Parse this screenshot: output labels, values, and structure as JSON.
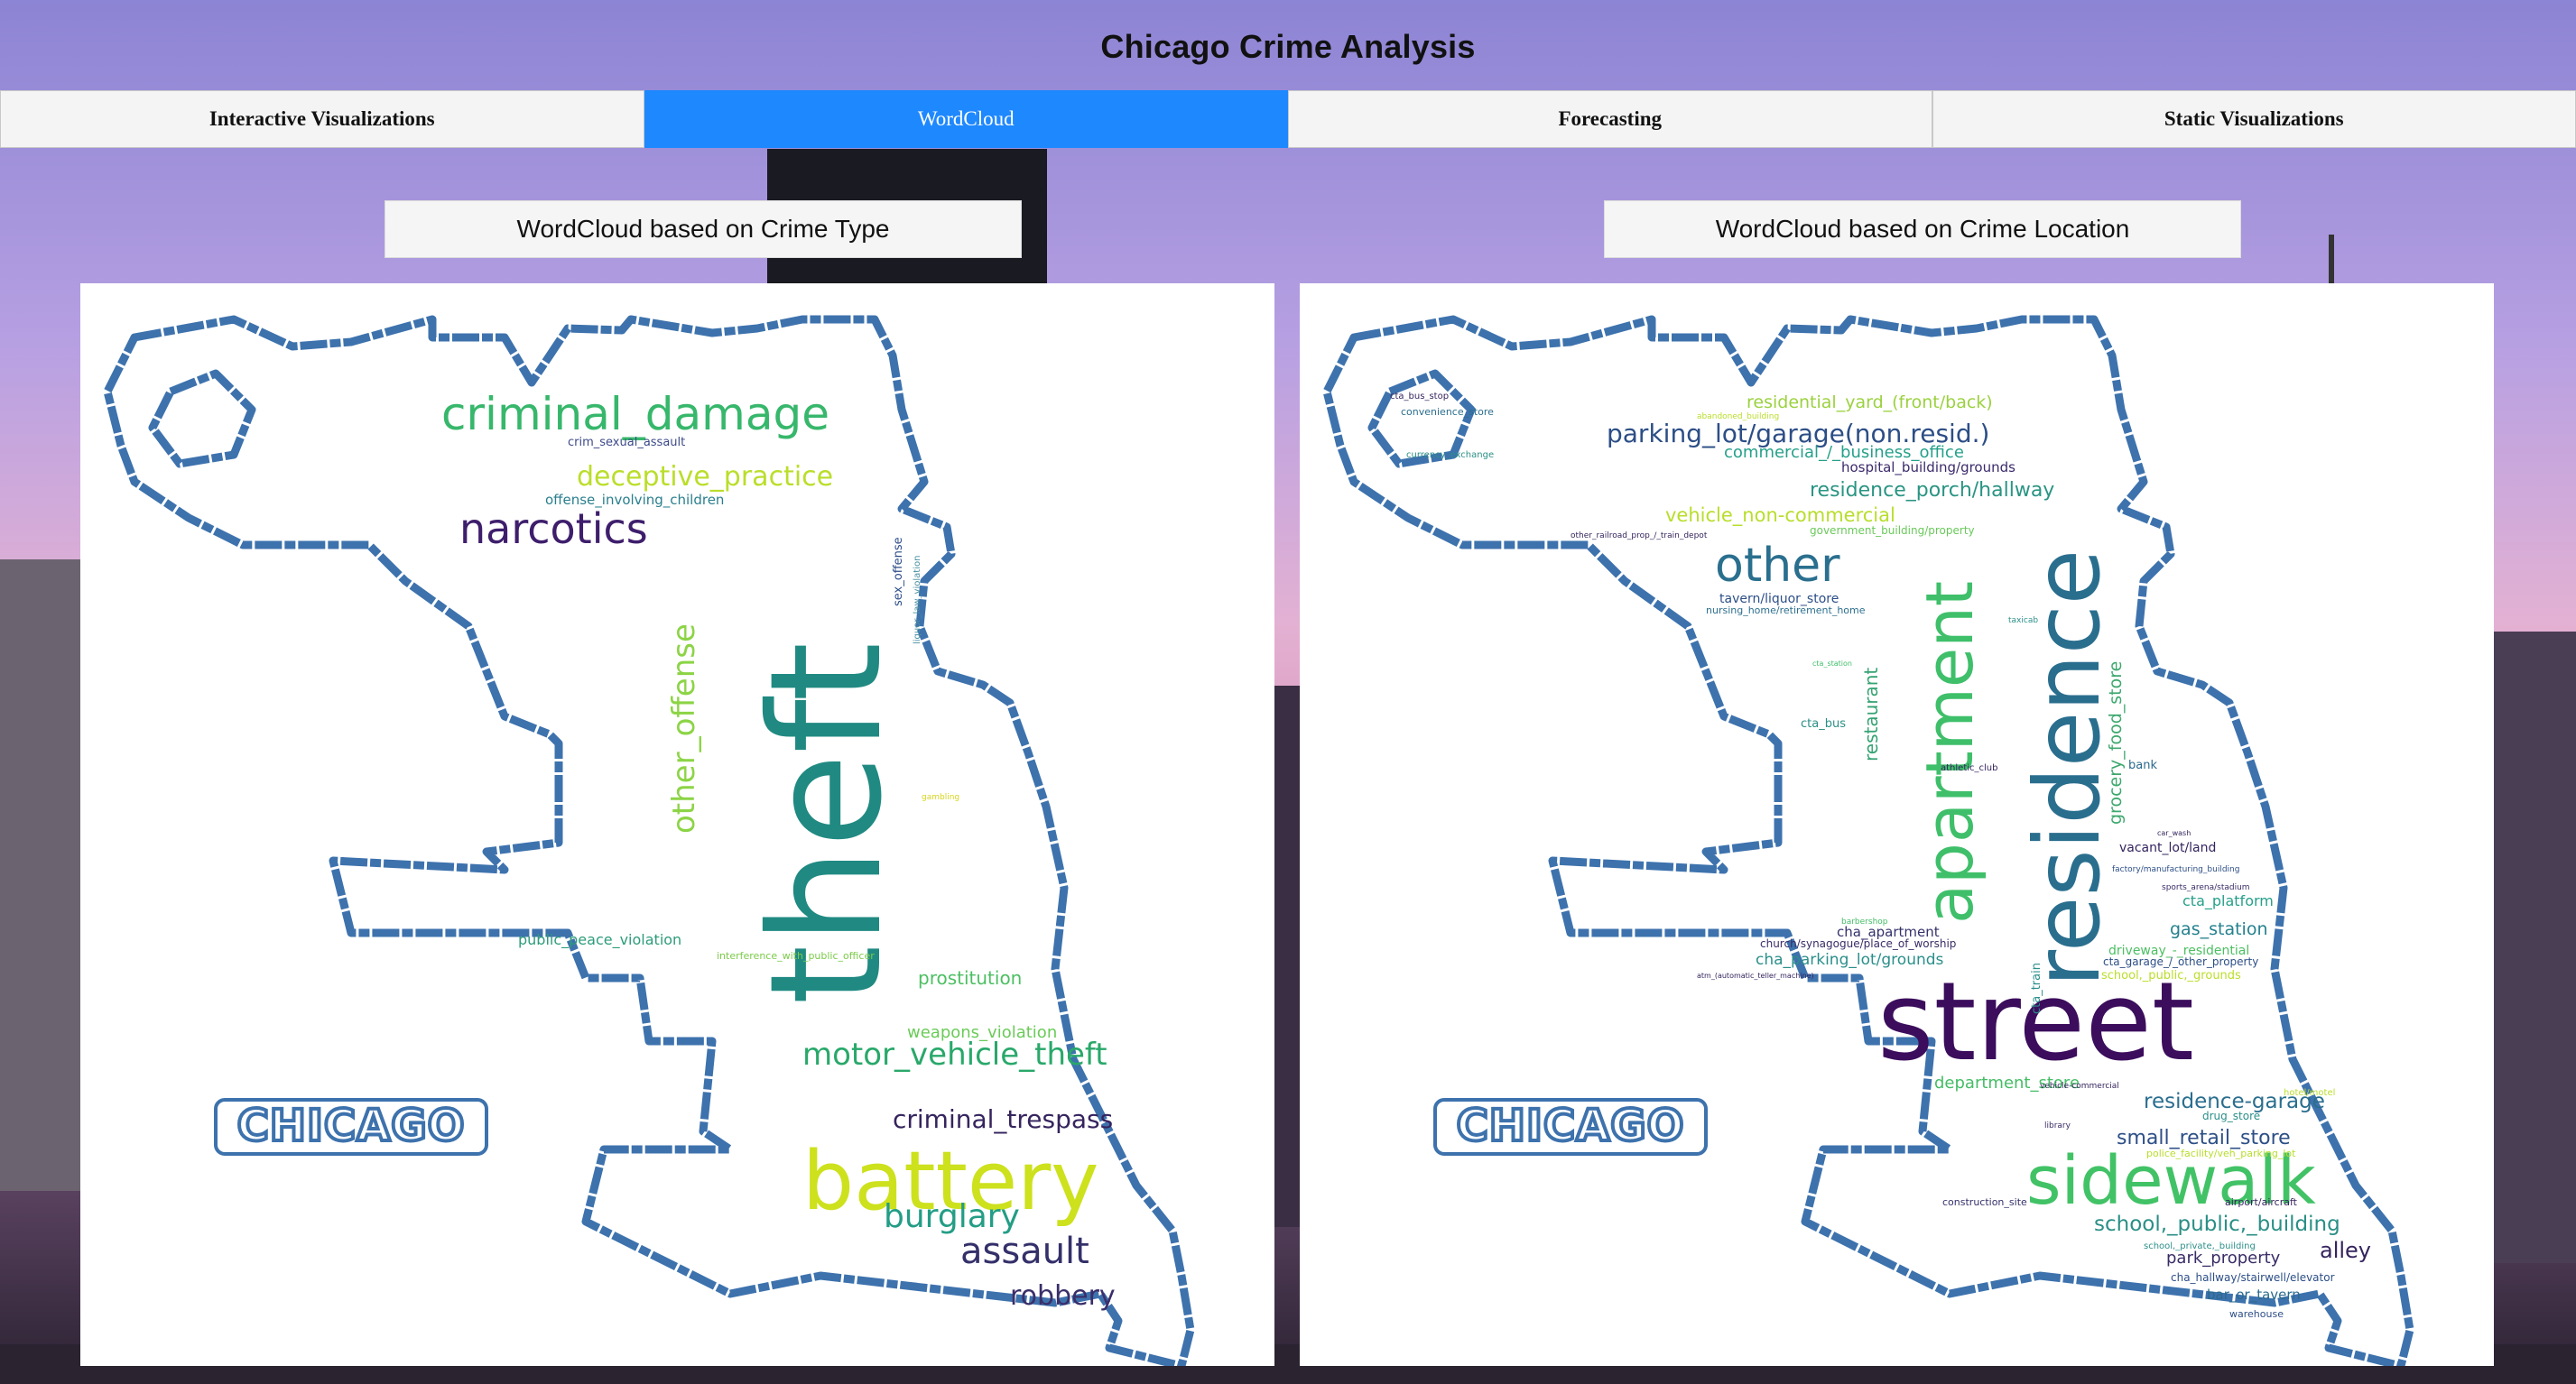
{
  "app": {
    "title": "Chicago Crime Analysis"
  },
  "tabs": [
    {
      "label": "Interactive Visualizations",
      "active": false
    },
    {
      "label": "WordCloud",
      "active": true
    },
    {
      "label": "Forecasting",
      "active": false
    },
    {
      "label": "Static Visualizations",
      "active": false
    }
  ],
  "colors": {
    "accent": "#1e88ff",
    "map_outline": "#3d72ad"
  },
  "panels": [
    {
      "label": "WordCloud based on Crime Type",
      "logo_text": "CHICAGO",
      "words": [
        {
          "text": "theft"
        },
        {
          "text": "battery"
        },
        {
          "text": "criminal_damage"
        },
        {
          "text": "narcotics"
        },
        {
          "text": "deceptive_practice"
        },
        {
          "text": "other_offense"
        },
        {
          "text": "motor_vehicle_theft"
        },
        {
          "text": "criminal_trespass"
        },
        {
          "text": "burglary"
        },
        {
          "text": "assault"
        },
        {
          "text": "robbery"
        },
        {
          "text": "prostitution"
        },
        {
          "text": "weapons_violation"
        },
        {
          "text": "public_peace_violation"
        },
        {
          "text": "interference_with_public_officer"
        },
        {
          "text": "offense_involving_children"
        },
        {
          "text": "crim_sexual_assault"
        },
        {
          "text": "sex_offense"
        },
        {
          "text": "liquor_law_violation"
        },
        {
          "text": "gambling"
        }
      ]
    },
    {
      "label": "WordCloud based on Crime Location",
      "logo_text": "CHICAGO",
      "words": [
        {
          "text": "street"
        },
        {
          "text": "residence"
        },
        {
          "text": "apartment"
        },
        {
          "text": "sidewalk"
        },
        {
          "text": "other"
        },
        {
          "text": "parking_lot/garage(non.resid.)"
        },
        {
          "text": "residential_yard_(front/back)"
        },
        {
          "text": "commercial_/_business_office"
        },
        {
          "text": "hospital_building/grounds"
        },
        {
          "text": "residence_porch/hallway"
        },
        {
          "text": "vehicle_non-commercial"
        },
        {
          "text": "government_building/property"
        },
        {
          "text": "tavern/liquor_store"
        },
        {
          "text": "nursing_home/retirement_home"
        },
        {
          "text": "restaurant"
        },
        {
          "text": "grocery_food_store"
        },
        {
          "text": "bank"
        },
        {
          "text": "vacant_lot/land"
        },
        {
          "text": "cta_platform"
        },
        {
          "text": "gas_station"
        },
        {
          "text": "cha_apartment"
        },
        {
          "text": "church/synagogue/place_of_worship"
        },
        {
          "text": "cha_parking_lot/grounds"
        },
        {
          "text": "driveway_-_residential"
        },
        {
          "text": "cta_garage_/_other_property"
        },
        {
          "text": "school,_public,_grounds"
        },
        {
          "text": "department_store"
        },
        {
          "text": "residence-garage"
        },
        {
          "text": "drug_store"
        },
        {
          "text": "small_retail_store"
        },
        {
          "text": "police_facility/veh_parking_lot"
        },
        {
          "text": "school,_public,_building"
        },
        {
          "text": "alley"
        },
        {
          "text": "park_property"
        },
        {
          "text": "cha_hallway/stairwell/elevator"
        },
        {
          "text": "bar_or_tavern"
        },
        {
          "text": "warehouse"
        },
        {
          "text": "construction_site"
        },
        {
          "text": "airport/aircraft"
        },
        {
          "text": "school,_private,_building"
        },
        {
          "text": "hotel/motel"
        },
        {
          "text": "cta_bus_stop"
        },
        {
          "text": "convenience_store"
        },
        {
          "text": "currency_exchange"
        },
        {
          "text": "other_railroad_prop_/_train_depot"
        },
        {
          "text": "cta_bus"
        },
        {
          "text": "cta_train"
        },
        {
          "text": "athletic_club"
        },
        {
          "text": "factory/manufacturing_building"
        },
        {
          "text": "sports_arena/stadium"
        },
        {
          "text": "atm_(automatic_teller_machine)"
        },
        {
          "text": "vehicle-commercial"
        },
        {
          "text": "library"
        },
        {
          "text": "abandoned_building"
        },
        {
          "text": "cta_station"
        },
        {
          "text": "barbershop"
        },
        {
          "text": "taxicab"
        },
        {
          "text": "car_wash"
        }
      ]
    }
  ]
}
